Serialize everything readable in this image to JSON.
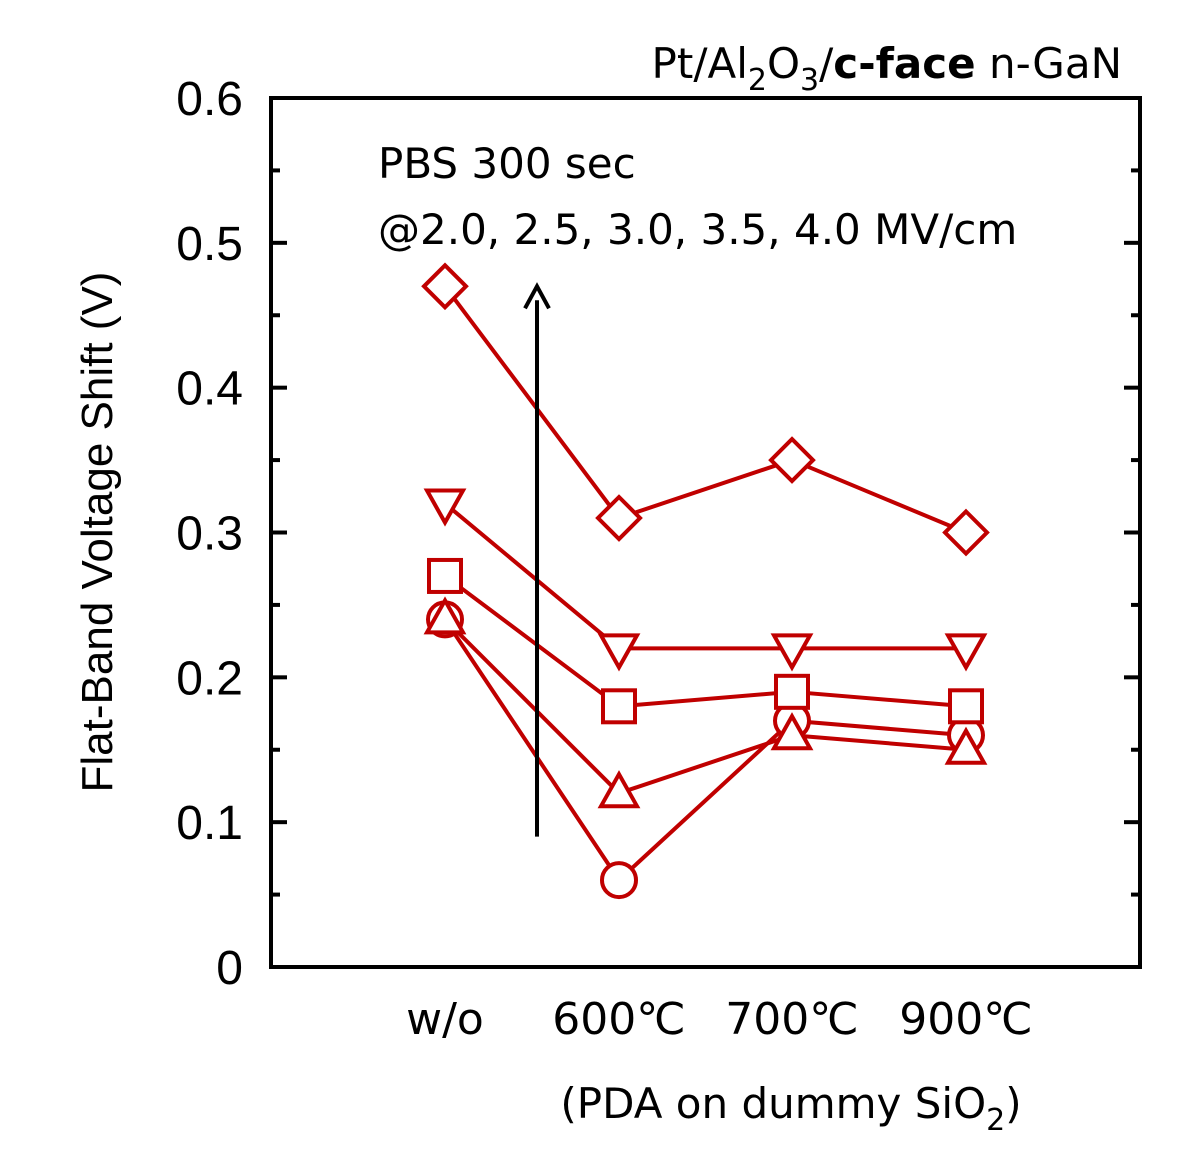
{
  "chart_data": {
    "type": "line",
    "title": {
      "part1": "Pt/Al",
      "sub1": "2",
      "part2": "O",
      "sub2": "3",
      "part3": "/",
      "bold": "c-face",
      "part4": " n-GaN"
    },
    "ylabel": "Flat-Band Voltage Shift (V)",
    "xlabel": {
      "main": "(PDA on dummy SiO",
      "sub": "2",
      "end": ")"
    },
    "categories": [
      "w/o",
      "600℃",
      "700℃",
      "900℃"
    ],
    "ylim": [
      0,
      0.6
    ],
    "yticks": [
      "0",
      "0.1",
      "0.2",
      "0.3",
      "0.4",
      "0.5",
      "0.6"
    ],
    "annotation": {
      "line1": "PBS 300 sec",
      "line2": "@2.0, 2.5, 3.0, 3.5, 4.0 MV/cm",
      "arrow_from": 0.09,
      "arrow_to": 0.47
    },
    "color": "#c00000",
    "series": [
      {
        "marker": "circle",
        "values": [
          0.24,
          0.06,
          0.17,
          0.16
        ]
      },
      {
        "marker": "triangle-up",
        "values": [
          0.24,
          0.12,
          0.16,
          0.15
        ]
      },
      {
        "marker": "square",
        "values": [
          0.27,
          0.18,
          0.19,
          0.18
        ]
      },
      {
        "marker": "triangle-down",
        "values": [
          0.32,
          0.22,
          0.22,
          0.22
        ]
      },
      {
        "marker": "diamond",
        "values": [
          0.47,
          0.31,
          0.35,
          0.3
        ]
      }
    ]
  }
}
